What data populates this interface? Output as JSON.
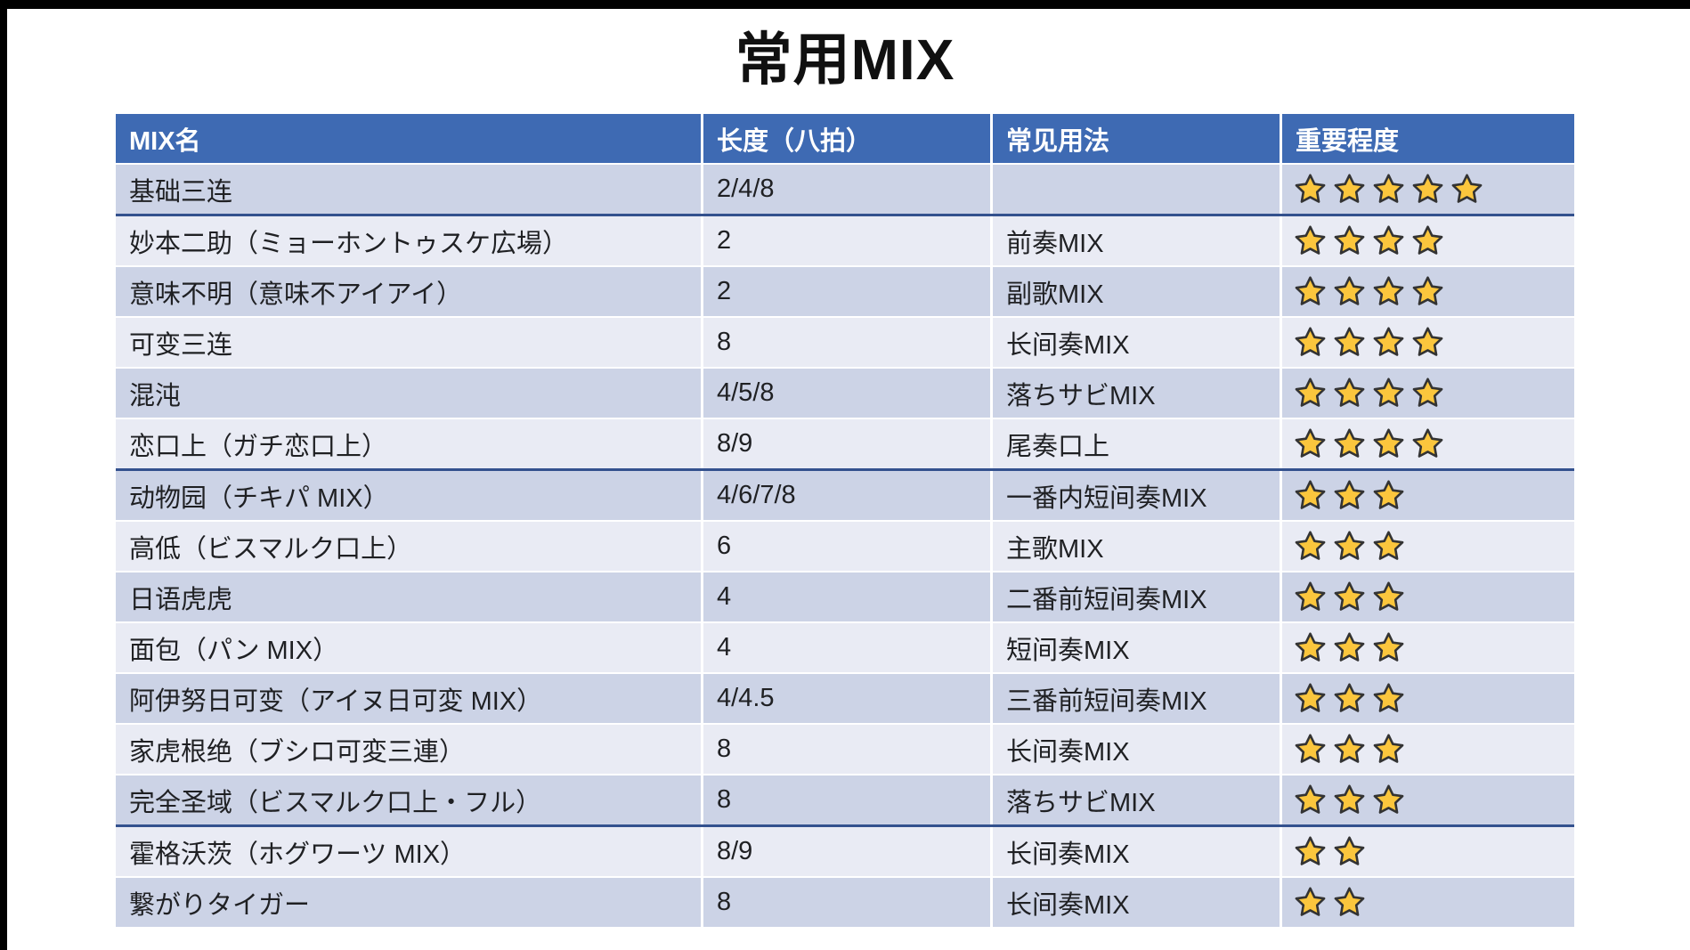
{
  "page": {
    "title": "常用MIX"
  },
  "theme": {
    "header_bg": "#3e6ab3",
    "header_text": "#ffffff",
    "body_text": "#1f2023",
    "row_dark": "#ccd3e6",
    "row_light": "#e9ebf4",
    "divider": "#33518e",
    "star_fill": "#fbc63d",
    "star_stroke": "#333333"
  },
  "table": {
    "columns": [
      {
        "key": "mix-name",
        "label": "MIX名"
      },
      {
        "key": "length",
        "label": "长度（八拍）"
      },
      {
        "key": "usage",
        "label": "常见用法"
      },
      {
        "key": "importance",
        "label": "重要程度"
      }
    ],
    "rows": [
      {
        "name": "基础三连",
        "length": "2/4/8",
        "usage": "",
        "stars": 5,
        "divider_after": true
      },
      {
        "name": "妙本二助（ミョーホントゥスケ広場）",
        "length": "2",
        "usage": "前奏MIX",
        "stars": 4,
        "divider_after": false
      },
      {
        "name": "意味不明（意味不アイアイ）",
        "length": "2",
        "usage": "副歌MIX",
        "stars": 4,
        "divider_after": false
      },
      {
        "name": "可变三连",
        "length": "8",
        "usage": "长间奏MIX",
        "stars": 4,
        "divider_after": false
      },
      {
        "name": "混沌",
        "length": "4/5/8",
        "usage": "落ちサビMIX",
        "stars": 4,
        "divider_after": false
      },
      {
        "name": "恋口上（ガチ恋口上）",
        "length": "8/9",
        "usage": "尾奏口上",
        "stars": 4,
        "divider_after": true
      },
      {
        "name": "动物园（チキパ MIX）",
        "length": "4/6/7/8",
        "usage": "一番内短间奏MIX",
        "stars": 3,
        "divider_after": false
      },
      {
        "name": "高低（ビスマルク口上）",
        "length": "6",
        "usage": "主歌MIX",
        "stars": 3,
        "divider_after": false
      },
      {
        "name": "日语虎虎",
        "length": "4",
        "usage": "二番前短间奏MIX",
        "stars": 3,
        "divider_after": false
      },
      {
        "name": "面包（パン MIX）",
        "length": "4",
        "usage": "短间奏MIX",
        "stars": 3,
        "divider_after": false
      },
      {
        "name": "阿伊努日可变（アイヌ日可変 MIX）",
        "length": "4/4.5",
        "usage": "三番前短间奏MIX",
        "stars": 3,
        "divider_after": false
      },
      {
        "name": "家虎根绝（ブシロ可変三連）",
        "length": "8",
        "usage": "长间奏MIX",
        "stars": 3,
        "divider_after": false
      },
      {
        "name": "完全圣域（ビスマルク口上・フル）",
        "length": "8",
        "usage": "落ちサビMIX",
        "stars": 3,
        "divider_after": true
      },
      {
        "name": "霍格沃茨（ホグワーツ MIX）",
        "length": "8/9",
        "usage": "长间奏MIX",
        "stars": 2,
        "divider_after": false
      },
      {
        "name": "繋がりタイガー",
        "length": "8",
        "usage": "长间奏MIX",
        "stars": 2,
        "divider_after": false
      }
    ]
  }
}
